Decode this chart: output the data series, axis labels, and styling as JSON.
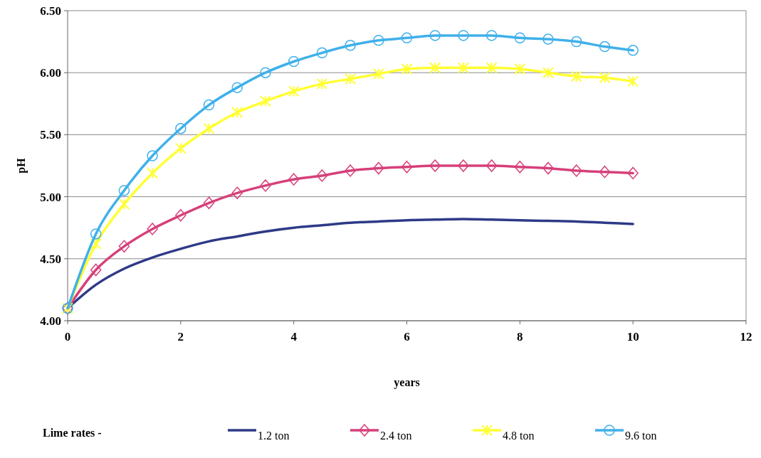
{
  "chart_data": {
    "type": "line",
    "xlabel": "years",
    "ylabel": "pH",
    "legend_title": "Lime rates -",
    "legend": "bottom",
    "grid": "y",
    "line_style": "solid",
    "x": [
      0,
      0.5,
      1,
      1.5,
      2,
      2.5,
      3,
      3.5,
      4,
      4.5,
      5,
      5.5,
      6,
      6.5,
      7,
      7.5,
      8,
      8.5,
      9,
      9.5,
      10
    ],
    "xlim": [
      0,
      12
    ],
    "xticks": [
      0,
      2,
      4,
      6,
      8,
      10,
      12
    ],
    "ylim": [
      4,
      6.5
    ],
    "yticks": [
      {
        "value": 4,
        "label": "4.00"
      },
      {
        "value": 4.5,
        "label": "4.50"
      },
      {
        "value": 5,
        "label": "5.00"
      },
      {
        "value": 5.5,
        "label": "5.50"
      },
      {
        "value": 6,
        "label": "6.00"
      },
      {
        "value": 6.5,
        "label": "6.50"
      }
    ],
    "series": [
      {
        "name": "1.2 ton",
        "color": "#2e3a87",
        "marker": "none",
        "values": [
          4.1,
          4.29,
          4.42,
          4.51,
          4.58,
          4.64,
          4.68,
          4.72,
          4.75,
          4.77,
          4.79,
          4.8,
          4.81,
          4.815,
          4.82,
          4.815,
          4.81,
          4.805,
          4.8,
          4.79,
          4.78
        ]
      },
      {
        "name": "2.4 ton",
        "color": "#d6407a",
        "marker": "diamond",
        "values": [
          4.1,
          4.41,
          4.6,
          4.74,
          4.85,
          4.95,
          5.03,
          5.09,
          5.14,
          5.17,
          5.21,
          5.23,
          5.24,
          5.25,
          5.25,
          5.25,
          5.24,
          5.23,
          5.21,
          5.2,
          5.19
        ]
      },
      {
        "name": "4.8 ton",
        "color": "#ffff33",
        "marker": "cross",
        "values": [
          4.1,
          4.62,
          4.94,
          5.19,
          5.39,
          5.55,
          5.68,
          5.77,
          5.85,
          5.91,
          5.95,
          5.99,
          6.03,
          6.04,
          6.04,
          6.04,
          6.03,
          6.0,
          5.97,
          5.96,
          5.93
        ]
      },
      {
        "name": "9.6 ton",
        "color": "#3fb0ea",
        "marker": "circle",
        "values": [
          4.1,
          4.7,
          5.05,
          5.33,
          5.55,
          5.74,
          5.88,
          6.0,
          6.09,
          6.16,
          6.22,
          6.26,
          6.28,
          6.3,
          6.3,
          6.3,
          6.28,
          6.27,
          6.25,
          6.21,
          6.18
        ]
      }
    ]
  }
}
